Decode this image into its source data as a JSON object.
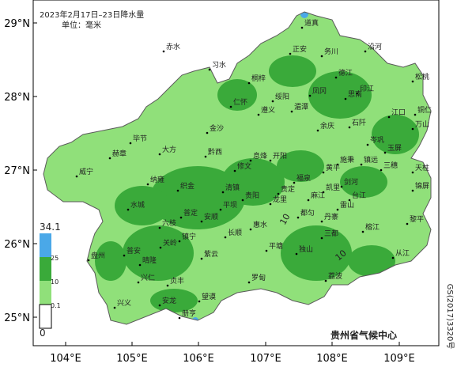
{
  "header": {
    "title": "2023年2月17日–23日降水量",
    "unit": "单位：毫米"
  },
  "axes": {
    "lat_labels": [
      "29°N",
      "28°N",
      "27°N",
      "26°N",
      "25°N"
    ],
    "lon_labels": [
      "104°E",
      "105°E",
      "106°E",
      "107°E",
      "108°E",
      "109°E"
    ]
  },
  "legend": {
    "labels": [
      "34.1",
      "25",
      "10",
      "0.1",
      "0"
    ]
  },
  "cities": [
    "道真",
    "赤水",
    "习水",
    "桐梓",
    "正安",
    "务川",
    "沿河",
    "德江",
    "印江",
    "松桃",
    "思南",
    "凤冈",
    "绥阳",
    "湄潭",
    "遵义",
    "金沙",
    "仁怀",
    "余庆",
    "石阡",
    "江口",
    "铜仁",
    "万山",
    "玉屏",
    "岑巩",
    "镇远",
    "三穗",
    "天柱",
    "锦屏",
    "施秉",
    "黄平",
    "凯里",
    "剑河",
    "台江",
    "雷山",
    "榕江",
    "从江",
    "黎平",
    "黔西",
    "毕节",
    "赫章",
    "大方",
    "纳雍",
    "织金",
    "平坝",
    "清镇",
    "修文",
    "息烽",
    "开阳",
    "贵阳",
    "龙里",
    "贵定",
    "福泉",
    "麻江",
    "都匀",
    "丹寨",
    "三都",
    "独山",
    "荔波",
    "平塘",
    "惠水",
    "长顺",
    "罗甸",
    "安顺",
    "普定",
    "镇宁",
    "关岭",
    "紫云",
    "六枝",
    "水城",
    "威宁",
    "盘州",
    "普安",
    "晴隆",
    "兴仁",
    "贞丰",
    "望谟",
    "兴义",
    "安龙",
    "册亨"
  ],
  "contour_labels": [
    "10",
    "10"
  ],
  "footer": "贵州省气候中心",
  "side_text": "GS(2017)3320号"
}
